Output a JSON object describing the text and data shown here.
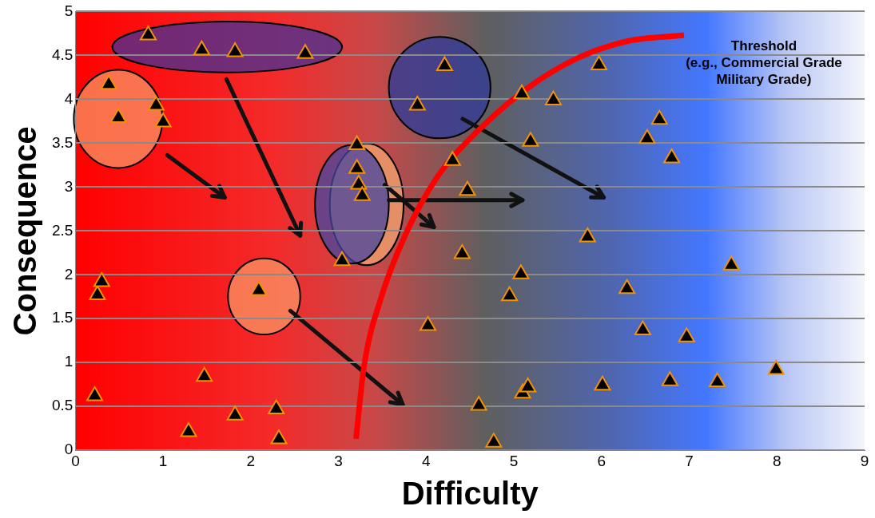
{
  "chart_data": {
    "type": "scatter",
    "xlabel": "Difficulty",
    "ylabel": "Consequence",
    "xlim": [
      0,
      9
    ],
    "xticks": [
      0,
      1,
      2,
      3,
      4,
      5,
      6,
      7,
      8,
      9
    ],
    "ylim": [
      0,
      5
    ],
    "yticks": [
      0,
      0.5,
      1,
      1.5,
      2,
      2.5,
      3,
      3.5,
      4,
      4.5,
      5
    ],
    "grid": "y",
    "legend": false,
    "marker": "triangle",
    "series": [
      {
        "color": "#000000",
        "x": [
          0.22,
          0.25,
          0.3,
          1.29,
          1.47,
          1.82,
          2.29,
          2.32,
          3.04,
          4.02,
          4.3,
          4.47,
          4.41,
          4.6,
          4.77,
          4.95,
          5.08,
          5.09,
          5.1,
          5.16,
          5.19,
          5.45,
          5.84,
          5.97,
          6.01,
          6.29,
          6.47,
          6.52,
          6.66,
          6.8,
          6.78,
          6.97,
          7.32,
          7.48,
          7.99,
          0.83,
          1.44,
          1.82,
          2.62,
          0.38,
          0.49,
          0.92,
          1.0,
          2.09,
          3.21,
          3.21,
          3.23,
          3.27,
          4.21,
          3.9
        ],
        "values": [
          0.62,
          1.77,
          1.92,
          0.21,
          0.84,
          0.4,
          0.47,
          0.13,
          2.16,
          1.42,
          3.3,
          2.96,
          2.24,
          0.51,
          0.09,
          1.76,
          2.01,
          4.06,
          0.65,
          0.72,
          3.52,
          3.99,
          2.43,
          4.39,
          0.74,
          1.84,
          1.37,
          3.55,
          3.77,
          3.33,
          0.79,
          1.29,
          0.78,
          2.11,
          0.92,
          4.73,
          4.56,
          4.54,
          4.52,
          4.17,
          3.79,
          3.93,
          3.74,
          1.82,
          3.48,
          3.21,
          3.03,
          2.9,
          4.38,
          3.93
        ]
      },
      {
        "type": "line",
        "name": "Threshold\n(e.g., Commercial Grade\nMilitary Grade)",
        "color": "#ff0000",
        "marker": "none",
        "x": [
          3.2,
          3.29,
          3.48,
          3.76,
          4.13,
          4.6,
          5.16,
          5.73,
          6.29,
          6.94
        ],
        "values": [
          0.13,
          0.95,
          1.72,
          2.45,
          3.12,
          3.65,
          4.13,
          4.47,
          4.66,
          4.73
        ]
      }
    ]
  }
}
